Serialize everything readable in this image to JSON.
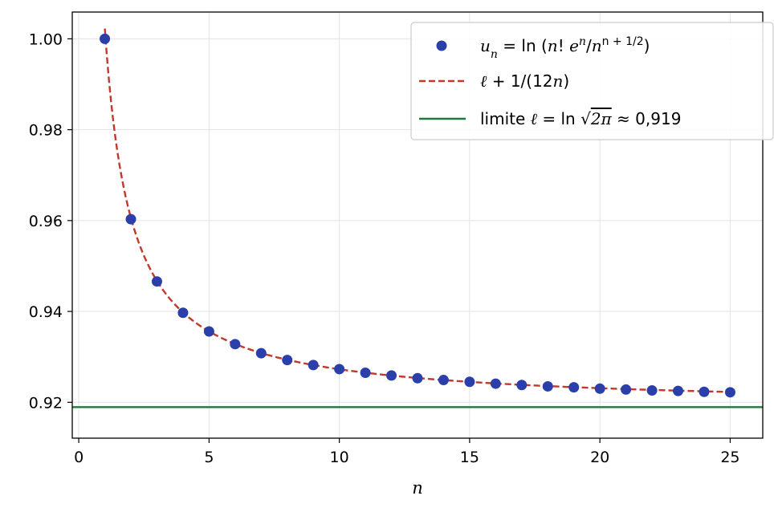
{
  "chart_data": {
    "type": "scatter",
    "title": "",
    "xlabel": "n",
    "ylabel": "",
    "xlim": [
      -0.25,
      26.25
    ],
    "ylim": [
      0.9121,
      1.0059
    ],
    "xticks": [
      0,
      5,
      10,
      15,
      20,
      25
    ],
    "yticks": [
      0.92,
      0.94,
      0.96,
      0.98,
      1.0
    ],
    "xtick_labels": [
      "0",
      "5",
      "10",
      "15",
      "20",
      "25"
    ],
    "ytick_labels": [
      "0.92",
      "0.94",
      "0.96",
      "0.98",
      "1.00"
    ],
    "grid": true,
    "legend_position": "top-right",
    "series": [
      {
        "name": "u_n = ln(n! e^n / n^(n+1/2))",
        "kind": "scatter",
        "color": "#2b3fab",
        "x": [
          1,
          2,
          3,
          4,
          5,
          6,
          7,
          8,
          9,
          10,
          11,
          12,
          13,
          14,
          15,
          16,
          17,
          18,
          19,
          20,
          21,
          22,
          23,
          24,
          25
        ],
        "y": [
          1.0,
          0.9603,
          0.9466,
          0.9397,
          0.9356,
          0.9328,
          0.9308,
          0.9293,
          0.9282,
          0.9273,
          0.9265,
          0.9259,
          0.9253,
          0.9249,
          0.9245,
          0.9241,
          0.9238,
          0.9235,
          0.9233,
          0.923,
          0.9228,
          0.9226,
          0.9225,
          0.9223,
          0.9222
        ]
      },
      {
        "name": "ℓ + 1/(12n)",
        "kind": "line",
        "style": "dashed",
        "color": "#c0392b",
        "x_range": [
          1,
          25
        ],
        "formula": "0.9189385 + 1/(12*x)"
      },
      {
        "name": "limite ℓ = ln √(2π) ≈ 0,919",
        "kind": "hline",
        "color": "#1e7a3c",
        "y": 0.9189385
      }
    ]
  },
  "legend": {
    "entries": [
      {
        "pre": "u",
        "sub": "n",
        "mid": " = ln (",
        "it2": "n",
        "rest": "! ",
        "it3": "e",
        "sup1": "n",
        "slash": "/",
        "it4": "n",
        "sup2": "n + 1/2",
        "end": ")"
      },
      {
        "it": "ℓ",
        "rest": " + 1/(12",
        "it2": "n",
        "end": ")"
      },
      {
        "pre": "limite ",
        "it": "ℓ",
        "mid": " = ln ",
        "root": "√",
        "rad": "2π",
        "end": " ≈ 0,919"
      }
    ]
  }
}
